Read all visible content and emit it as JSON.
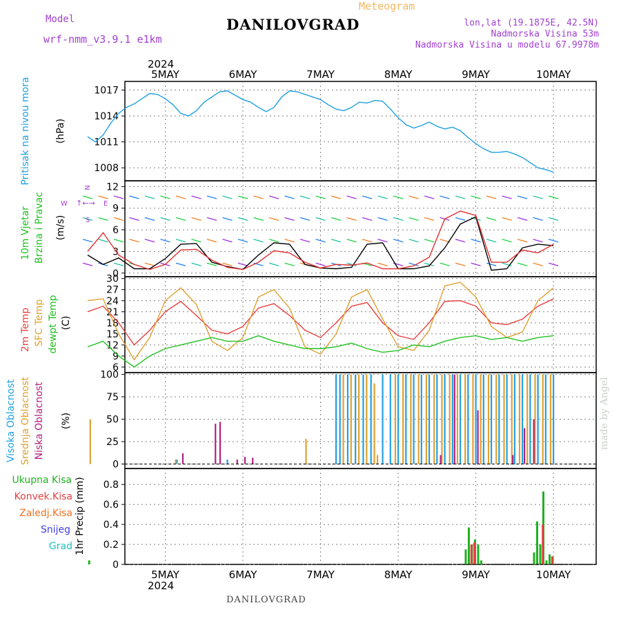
{
  "header": {
    "model_label": "Model",
    "model_name": "wrf-nmm_v3.9.1 e1km",
    "title": "DANILOVGRAD",
    "subtitle": "Meteogram",
    "lonlat": "lon,lat (19.1875E, 42.5N)",
    "elevation": "Nadmorska Visina 53m",
    "model_elevation": "Nadmorska Visina u modelu 67.9978m",
    "year_top": "2024",
    "year_bottom": "2024",
    "footer": "DANILOVGRAD",
    "credit": "made by Angel"
  },
  "colors": {
    "pressure": "#1e9fe0",
    "temp2m": "#e84040",
    "sfc": "#e0a030",
    "dewpt": "#20c020",
    "high_cloud": "#20a0e0",
    "mid_cloud": "#e0a030",
    "low_cloud": "#b02080",
    "precip_total": "#20b020",
    "precip_conv": "#e04040",
    "precip_strat": "#f07020",
    "precip_snow": "#4040e0",
    "precip_grad": "#20c0c0",
    "gust": "#e03030",
    "wind_speed": "#000000",
    "grid": "#808080",
    "violet": "#a040d0"
  },
  "chart_data": [
    {
      "type": "line",
      "id": "pressure",
      "ylabel": "Pritisak na nivou mora",
      "unit": "(hPa)",
      "x_ticks": [
        "5MAY",
        "6MAY",
        "7MAY",
        "8MAY",
        "9MAY",
        "10MAY"
      ],
      "ylim": [
        1006.5,
        1018
      ],
      "yticks": [
        1008,
        1011,
        1014,
        1017
      ],
      "grid": true,
      "series": [
        {
          "color": "pressure",
          "x": [
            0,
            0.1,
            0.2,
            0.3,
            0.4,
            0.5,
            0.6,
            0.7,
            0.8,
            0.9,
            1.0,
            1.1,
            1.2,
            1.3,
            1.4,
            1.5,
            1.6,
            1.7,
            1.8,
            1.9,
            2.0,
            2.1,
            2.2,
            2.3,
            2.4,
            2.5,
            2.6,
            2.7,
            2.8,
            2.9,
            3.0,
            3.1,
            3.2,
            3.3,
            3.4,
            3.5,
            3.6,
            3.7,
            3.8,
            3.9,
            4.0,
            4.1,
            4.2,
            4.3,
            4.4,
            4.5,
            4.6,
            4.7,
            4.8,
            4.9,
            5.0,
            5.1,
            5.2,
            5.3,
            5.4,
            5.5,
            5.6,
            5.7,
            5.8,
            5.9,
            6.0
          ],
          "values": [
            1011.6,
            1011.0,
            1011.8,
            1013.2,
            1014.3,
            1015.0,
            1015.4,
            1016.0,
            1016.6,
            1016.5,
            1016.0,
            1015.3,
            1014.3,
            1014.0,
            1014.6,
            1015.6,
            1016.2,
            1016.8,
            1016.9,
            1016.4,
            1015.9,
            1015.6,
            1015.0,
            1014.5,
            1015.0,
            1016.2,
            1016.9,
            1016.8,
            1016.5,
            1016.2,
            1015.9,
            1015.3,
            1014.8,
            1014.6,
            1015.0,
            1015.6,
            1015.5,
            1015.8,
            1015.7,
            1014.8,
            1013.8,
            1013.0,
            1012.6,
            1012.9,
            1013.3,
            1012.8,
            1012.5,
            1012.7,
            1012.3,
            1011.5,
            1010.8,
            1010.2,
            1009.8,
            1009.8,
            1009.9,
            1009.6,
            1009.2,
            1008.6,
            1008.0,
            1007.8,
            1007.5
          ]
        }
      ]
    },
    {
      "type": "line",
      "id": "wind",
      "ylabel": "10m Vjetar Brzina i Pravac",
      "unit": "(m/s)",
      "compass": [
        "N",
        "W",
        "E",
        "S"
      ],
      "compass_extra": "↑←→",
      "ylim": [
        -0.5,
        12.8
      ],
      "yticks": [
        0,
        3,
        6,
        9,
        12
      ],
      "grid": true,
      "series": [
        {
          "name": "speed",
          "color": "wind_speed",
          "x": [
            0,
            0.2,
            0.4,
            0.6,
            0.8,
            1.0,
            1.2,
            1.4,
            1.6,
            1.8,
            2.0,
            2.2,
            2.4,
            2.6,
            2.8,
            3.0,
            3.2,
            3.4,
            3.6,
            3.8,
            4.0,
            4.2,
            4.4,
            4.6,
            4.8,
            5.0,
            5.2,
            5.4,
            5.6,
            5.8,
            6.0
          ],
          "values": [
            2.5,
            1.2,
            2.1,
            0.6,
            0.6,
            2.0,
            4.0,
            4.1,
            1.5,
            0.9,
            0.5,
            2.5,
            4.2,
            4.0,
            1.2,
            0.7,
            0.6,
            0.8,
            4.0,
            4.2,
            0.6,
            0.6,
            1.0,
            3.5,
            6.8,
            7.8,
            0.4,
            0.6,
            3.5,
            4.0,
            3.8
          ]
        },
        {
          "name": "gust",
          "color": "gust",
          "x": [
            0,
            0.2,
            0.4,
            0.6,
            0.8,
            1.0,
            1.2,
            1.4,
            1.6,
            1.8,
            2.0,
            2.2,
            2.4,
            2.6,
            2.8,
            3.0,
            3.2,
            3.4,
            3.6,
            3.8,
            4.0,
            4.2,
            4.4,
            4.6,
            4.8,
            5.0,
            5.2,
            5.4,
            5.6,
            5.8,
            6.0
          ],
          "values": [
            3.0,
            5.6,
            2.5,
            1.2,
            0.5,
            1.2,
            3.2,
            3.3,
            1.8,
            0.8,
            0.5,
            1.5,
            3.1,
            2.8,
            1.5,
            0.7,
            1.2,
            1.1,
            1.4,
            0.6,
            0.6,
            1.0,
            2.2,
            7.5,
            8.6,
            8.0,
            1.5,
            1.5,
            3.2,
            2.8,
            4.0
          ]
        }
      ]
    },
    {
      "type": "line",
      "id": "temperature",
      "ylabels": [
        "2m Temp",
        "SFC Temp",
        "dewpt Temp"
      ],
      "unit": "(C)",
      "ylim": [
        4.5,
        30.5
      ],
      "yticks": [
        6,
        9,
        12,
        15,
        18,
        21,
        24,
        27,
        30
      ],
      "grid": true,
      "series": [
        {
          "name": "2m Temp",
          "color": "temp2m",
          "x": [
            0,
            0.2,
            0.4,
            0.6,
            0.8,
            1.0,
            1.2,
            1.4,
            1.6,
            1.8,
            2.0,
            2.2,
            2.4,
            2.6,
            2.8,
            3.0,
            3.2,
            3.4,
            3.6,
            3.8,
            4.0,
            4.2,
            4.4,
            4.6,
            4.8,
            5.0,
            5.2,
            5.4,
            5.6,
            5.8,
            6.0
          ],
          "values": [
            21.0,
            22.5,
            18.0,
            12.0,
            16.0,
            21.0,
            23.8,
            20.0,
            16.0,
            15.0,
            17.0,
            22.0,
            23.2,
            20.0,
            16.0,
            14.0,
            18.0,
            22.5,
            23.5,
            18.0,
            14.5,
            13.5,
            18.0,
            23.8,
            24.0,
            22.5,
            18.0,
            17.5,
            19.0,
            22.5,
            24.5
          ]
        },
        {
          "name": "SFC Temp",
          "color": "sfc",
          "x": [
            0,
            0.2,
            0.4,
            0.6,
            0.8,
            1.0,
            1.2,
            1.4,
            1.6,
            1.8,
            2.0,
            2.2,
            2.4,
            2.6,
            2.8,
            3.0,
            3.2,
            3.4,
            3.6,
            3.8,
            4.0,
            4.2,
            4.4,
            4.6,
            4.8,
            5.0,
            5.2,
            5.4,
            5.6,
            5.8,
            6.0
          ],
          "values": [
            24.0,
            24.5,
            15.0,
            8.0,
            14.0,
            24.0,
            27.5,
            23.0,
            13.0,
            10.5,
            14.0,
            25.0,
            27.0,
            22.0,
            11.5,
            9.5,
            15.0,
            25.0,
            27.0,
            19.0,
            11.5,
            10.5,
            16.0,
            28.0,
            29.0,
            25.0,
            17.0,
            14.0,
            15.5,
            24.0,
            27.5
          ]
        },
        {
          "name": "dewpt Temp",
          "color": "dewpt",
          "x": [
            0,
            0.2,
            0.4,
            0.6,
            0.8,
            1.0,
            1.2,
            1.4,
            1.6,
            1.8,
            2.0,
            2.2,
            2.4,
            2.6,
            2.8,
            3.0,
            3.2,
            3.4,
            3.6,
            3.8,
            4.0,
            4.2,
            4.4,
            4.6,
            4.8,
            5.0,
            5.2,
            5.4,
            5.6,
            5.8,
            6.0
          ],
          "values": [
            11.5,
            13.0,
            9.0,
            6.0,
            9.0,
            11.0,
            12.0,
            13.0,
            14.0,
            13.0,
            13.0,
            14.5,
            13.0,
            12.0,
            11.0,
            11.0,
            11.5,
            12.5,
            11.0,
            10.0,
            10.5,
            12.0,
            11.5,
            13.0,
            14.0,
            14.5,
            13.5,
            14.0,
            13.0,
            14.0,
            14.5
          ]
        }
      ]
    },
    {
      "type": "bar",
      "id": "clouds",
      "ylabels": [
        "Visoka Oblacnost",
        "Srednja Oblacnost",
        "Niska Oblacnost"
      ],
      "unit": "(%)",
      "ylim": [
        -5,
        102
      ],
      "yticks": [
        0,
        25,
        50,
        75,
        100
      ],
      "grid": true,
      "series": [
        {
          "name": "Visoka Oblacnost",
          "color": "high_cloud",
          "x": [
            1.15,
            1.8,
            3.2,
            3.25,
            3.35,
            3.45,
            3.55,
            3.65,
            3.8,
            3.9,
            4.0,
            4.1,
            4.2,
            4.3,
            4.4,
            4.5,
            4.6,
            4.7,
            4.8,
            4.9,
            5.0,
            5.1,
            5.2,
            5.3,
            5.4,
            5.5,
            5.6,
            5.7,
            5.8,
            5.9,
            6.0
          ],
          "values": [
            5,
            5,
            100,
            100,
            100,
            100,
            100,
            100,
            100,
            100,
            100,
            100,
            100,
            100,
            100,
            100,
            100,
            100,
            100,
            100,
            100,
            100,
            100,
            100,
            100,
            100,
            100,
            100,
            100,
            100,
            100
          ]
        },
        {
          "name": "Srednja Oblacnost",
          "color": "mid_cloud",
          "x": [
            0.02,
            1.12,
            2.8,
            3.28,
            3.38,
            3.48,
            3.58,
            3.68,
            3.72,
            3.95,
            4.05,
            4.15,
            4.25,
            4.35,
            4.45,
            4.55,
            4.65,
            4.75,
            4.85,
            4.95,
            5.05,
            5.15,
            5.25,
            5.35,
            5.45,
            5.55,
            5.65,
            5.75,
            5.85,
            5.95
          ],
          "values": [
            50,
            5,
            28,
            100,
            100,
            100,
            100,
            90,
            10,
            100,
            100,
            100,
            100,
            100,
            100,
            100,
            100,
            100,
            100,
            100,
            100,
            100,
            100,
            100,
            100,
            100,
            100,
            100,
            100,
            100
          ]
        },
        {
          "name": "Niska Oblacnost",
          "color": "low_cloud",
          "x": [
            1.2,
            1.62,
            1.68,
            1.9,
            2.0,
            2.1,
            4.52,
            4.7,
            5.0,
            5.45,
            5.6,
            5.72
          ],
          "values": [
            12,
            45,
            47,
            5,
            8,
            7,
            10,
            100,
            60,
            10,
            40,
            50
          ]
        }
      ]
    },
    {
      "type": "bar",
      "id": "precip",
      "ylabel": "1hr Precip (mm)",
      "legend": [
        "Ukupna Kisa",
        "Konvek.Kisa",
        "Zaledj.Kisa",
        "Snijeg",
        "Grad"
      ],
      "ylim": [
        0,
        0.96
      ],
      "yticks": [
        0,
        0.2,
        0.4,
        0.6,
        0.8
      ],
      "grid": true,
      "series": [
        {
          "name": "Ukupna Kisa",
          "color": "precip_total",
          "x": [
            0.02,
            4.87,
            4.91,
            4.95,
            4.99,
            5.03,
            5.07,
            5.75,
            5.79,
            5.83,
            5.87,
            5.91,
            5.95,
            5.99
          ],
          "values": [
            0.04,
            0.15,
            0.37,
            0.2,
            0.25,
            0.2,
            0.04,
            0.12,
            0.43,
            0.2,
            0.73,
            0.04,
            0.1,
            0.08
          ]
        },
        {
          "name": "Konvek.Kisa",
          "color": "precip_conv",
          "x": [
            4.93,
            4.97,
            5.85,
            5.97
          ],
          "values": [
            0.2,
            0.22,
            0.4,
            0.08
          ]
        }
      ]
    }
  ]
}
